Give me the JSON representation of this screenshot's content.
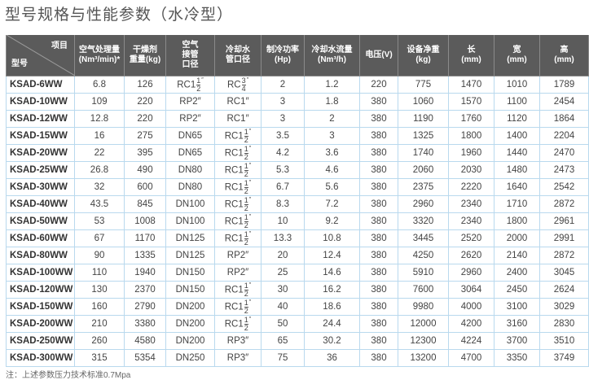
{
  "title": "型号规格与性能参数（水冷型）",
  "header": {
    "item": "项目",
    "model": "型号",
    "cols": [
      "空气处理量\n(Nm³/min)*",
      "干燥剂\n重量(kg)",
      "空气\n接管\n口径",
      "冷却水\n管口径",
      "制冷功率\n(Hp)",
      "冷却水流量\n(Nm³/h)",
      "电压(V)",
      "设备净重\n(kg)",
      "长\n(mm)",
      "宽\n(mm)",
      "高\n(mm)"
    ]
  },
  "rows": [
    [
      "KSAD-6WW",
      "6.8",
      "126",
      {
        "m": "RC1",
        "n": "1",
        "d": "2"
      },
      {
        "m": "RC",
        "n": "3",
        "d": "4"
      },
      "2",
      "1.2",
      "220",
      "775",
      "1470",
      "1010",
      "1789"
    ],
    [
      "KSAD-10WW",
      "109",
      "220",
      "RP2″",
      "RC1″",
      "3",
      "1.8",
      "380",
      "1060",
      "1570",
      "1100",
      "2454"
    ],
    [
      "KSAD-12WW",
      "12.8",
      "220",
      "RP2″",
      "RC1″",
      "3",
      "2",
      "380",
      "1190",
      "1760",
      "1120",
      "1864"
    ],
    [
      "KSAD-15WW",
      "16",
      "275",
      "DN65",
      {
        "m": "RC1",
        "n": "1",
        "d": "2"
      },
      "3.5",
      "3",
      "380",
      "1325",
      "1800",
      "1400",
      "2204"
    ],
    [
      "KSAD-20WW",
      "22",
      "395",
      "DN65",
      {
        "m": "RC1",
        "n": "1",
        "d": "2"
      },
      "4.2",
      "3.6",
      "380",
      "1740",
      "1960",
      "1440",
      "2470"
    ],
    [
      "KSAD-25WW",
      "26.8",
      "490",
      "DN80",
      {
        "m": "RC1",
        "n": "1",
        "d": "2"
      },
      "5.3",
      "4.6",
      "380",
      "2060",
      "2030",
      "1480",
      "2473"
    ],
    [
      "KSAD-30WW",
      "32",
      "600",
      "DN80",
      {
        "m": "RC1",
        "n": "1",
        "d": "2"
      },
      "6.7",
      "5.6",
      "380",
      "2375",
      "2220",
      "1640",
      "2542"
    ],
    [
      "KSAD-40WW",
      "43.5",
      "845",
      "DN100",
      {
        "m": "RC1",
        "n": "1",
        "d": "2"
      },
      "8.3",
      "7.2",
      "380",
      "2960",
      "2340",
      "1710",
      "2872"
    ],
    [
      "KSAD-50WW",
      "53",
      "1008",
      "DN100",
      {
        "m": "RC1",
        "n": "1",
        "d": "2"
      },
      "10",
      "9.2",
      "380",
      "3320",
      "2340",
      "1800",
      "2961"
    ],
    [
      "KSAD-60WW",
      "67",
      "1170",
      "DN125",
      {
        "m": "RC1",
        "n": "1",
        "d": "2"
      },
      "13.3",
      "10.8",
      "380",
      "3445",
      "2520",
      "2000",
      "2991"
    ],
    [
      "KSAD-80WW",
      "90",
      "1335",
      "DN125",
      "RP2″",
      "20",
      "12.4",
      "380",
      "4250",
      "2620",
      "2140",
      "2872"
    ],
    [
      "KSAD-100WW",
      "110",
      "1940",
      "DN150",
      "RP2″",
      "25",
      "14.6",
      "380",
      "5910",
      "2960",
      "2400",
      "3045"
    ],
    [
      "KSAD-120WW",
      "130",
      "2370",
      "DN150",
      {
        "m": "RC1",
        "n": "1",
        "d": "2"
      },
      "30",
      "16.2",
      "380",
      "7600",
      "3064",
      "2450",
      "2624"
    ],
    [
      "KSAD-150WW",
      "160",
      "2790",
      "DN200",
      {
        "m": "RC1",
        "n": "1",
        "d": "2"
      },
      "40",
      "18.6",
      "380",
      "9980",
      "4000",
      "3100",
      "3029"
    ],
    [
      "KSAD-200WW",
      "210",
      "3380",
      "DN200",
      {
        "m": "RC1",
        "n": "1",
        "d": "2"
      },
      "50",
      "24.4",
      "380",
      "12000",
      "4200",
      "3160",
      "2830"
    ],
    [
      "KSAD-250WW",
      "260",
      "4580",
      "DN200",
      "RP3″",
      "65",
      "30.2",
      "380",
      "12300",
      "4224",
      "3700",
      "3510"
    ],
    [
      "KSAD-300WW",
      "315",
      "5354",
      "DN250",
      "RP3″",
      "75",
      "36",
      "380",
      "13200",
      "4700",
      "3350",
      "3749"
    ]
  ],
  "note": "注：上述参数压力技术标准0.7Mpa",
  "colors": {
    "header_bg": "#5b5b5b",
    "grid": "#b9d9ee"
  }
}
